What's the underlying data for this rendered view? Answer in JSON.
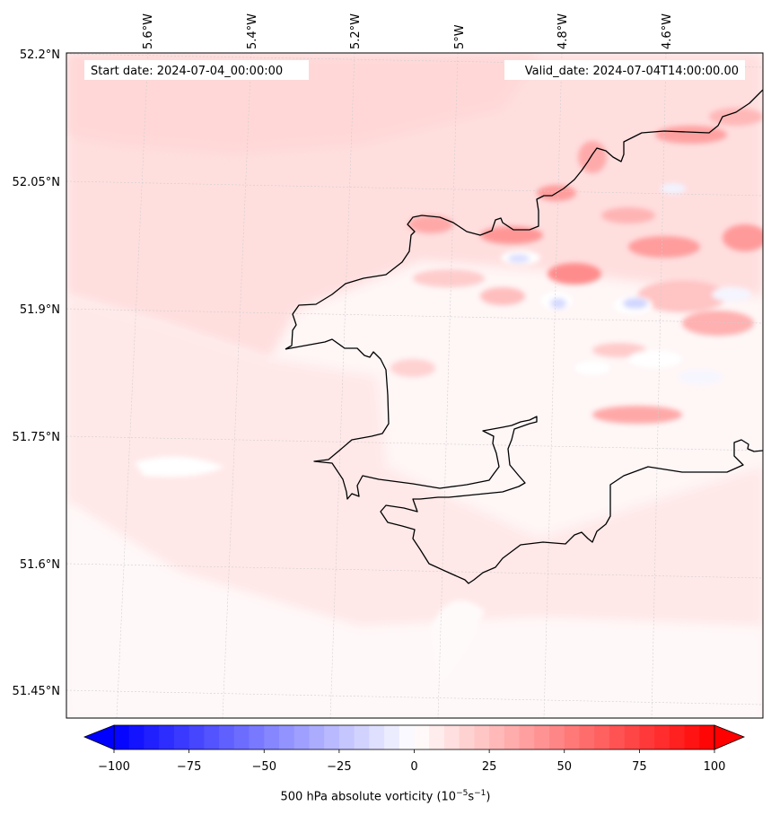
{
  "map": {
    "start_date_label": "Start date: 2024-07-04_00:00:00",
    "valid_date_label": "Valid_date: 2024-07-04T14:00:00.00",
    "lon_labels": [
      "5.6°W",
      "5.4°W",
      "5.2°W",
      "5°W",
      "4.8°W",
      "4.6°W"
    ],
    "lat_labels": [
      "52.2°N",
      "52.05°N",
      "51.9°N",
      "51.75°N",
      "51.6°N",
      "51.45°N"
    ],
    "gridlines": true,
    "coastline_color": "#000000"
  },
  "colorbar": {
    "ticks": [
      "−100",
      "−75",
      "−50",
      "−25",
      "0",
      "25",
      "50",
      "75",
      "100"
    ],
    "min_value": -100,
    "max_value": 100,
    "extend": "both",
    "label_prefix": "500 hPa absolute vorticity (10",
    "label_exp1": "−5",
    "label_mid": "s",
    "label_exp2": "−1",
    "label_suffix": ")",
    "colormap": "bwr",
    "neg_color": "#0000ff",
    "zero_color": "#ffffff",
    "pos_color": "#ff0000"
  }
}
